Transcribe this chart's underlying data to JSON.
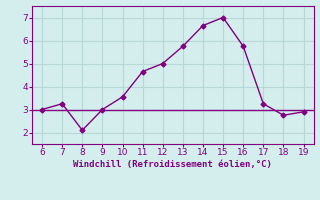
{
  "x": [
    6,
    7,
    8,
    9,
    10,
    11,
    12,
    13,
    14,
    15,
    16,
    17,
    18,
    19
  ],
  "y": [
    3.0,
    3.25,
    2.1,
    3.0,
    3.55,
    4.65,
    5.0,
    5.75,
    6.65,
    7.0,
    5.75,
    3.25,
    2.75,
    2.9
  ],
  "line_color": "#800080",
  "marker": "D",
  "marker_size": 2.5,
  "bg_color": "#d4eeee",
  "grid_color": "#b8d8d8",
  "xlabel": "Windchill (Refroidissement éolien,°C)",
  "xlabel_color": "#800080",
  "tick_color": "#800080",
  "spine_color": "#800080",
  "xlim": [
    5.5,
    19.5
  ],
  "ylim": [
    1.5,
    7.5
  ],
  "xticks": [
    6,
    7,
    8,
    9,
    10,
    11,
    12,
    13,
    14,
    15,
    16,
    17,
    18,
    19
  ],
  "yticks": [
    2,
    3,
    4,
    5,
    6,
    7
  ],
  "hline_y": 3.0,
  "hline_color": "#800080"
}
